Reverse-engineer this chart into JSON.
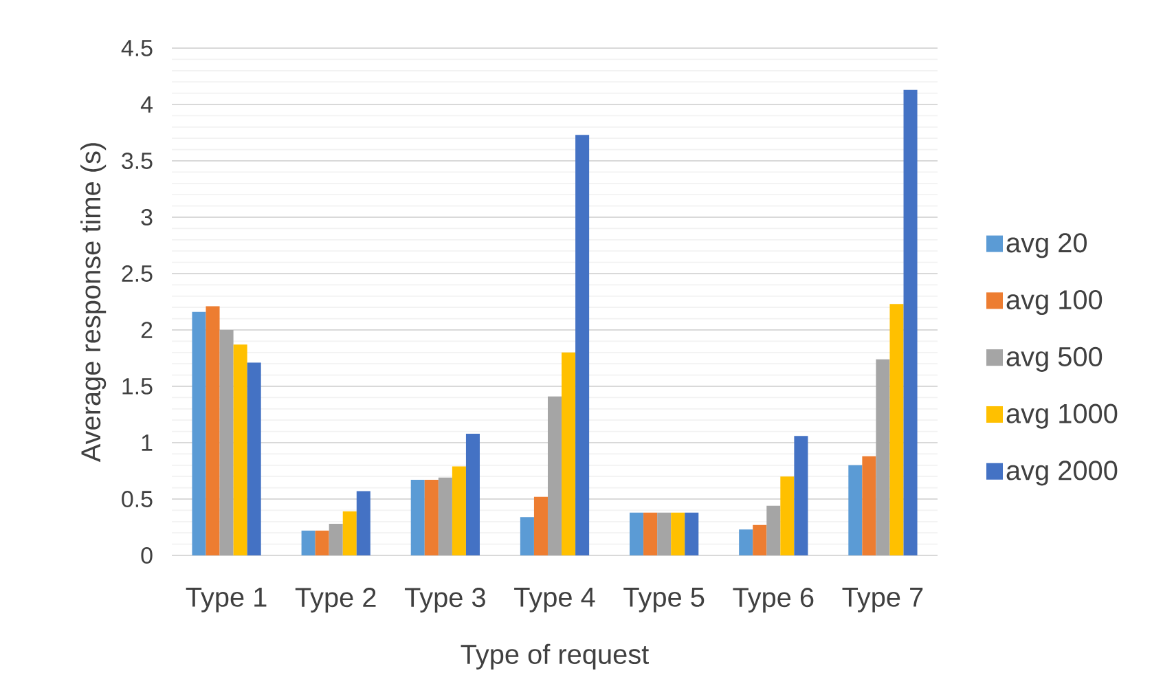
{
  "chart_data": {
    "type": "bar",
    "xlabel": "Type of request",
    "ylabel": "Average response time (s)",
    "categories": [
      "Type 1",
      "Type 2",
      "Type 3",
      "Type 4",
      "Type 5",
      "Type 6",
      "Type 7"
    ],
    "series": [
      {
        "name": "avg 20",
        "color": "#5b9bd5",
        "values": [
          2.16,
          0.22,
          0.67,
          0.34,
          0.38,
          0.23,
          0.8
        ]
      },
      {
        "name": "avg 100",
        "color": "#ed7d31",
        "values": [
          2.21,
          0.22,
          0.67,
          0.52,
          0.38,
          0.27,
          0.88
        ]
      },
      {
        "name": "avg 500",
        "color": "#a5a5a5",
        "values": [
          2.0,
          0.28,
          0.69,
          1.41,
          0.38,
          0.44,
          1.74
        ]
      },
      {
        "name": "avg 1000",
        "color": "#ffc000",
        "values": [
          1.87,
          0.39,
          0.79,
          1.8,
          0.38,
          0.7,
          2.23
        ]
      },
      {
        "name": "avg 2000",
        "color": "#4472c4",
        "values": [
          1.71,
          0.57,
          1.08,
          3.73,
          0.38,
          1.06,
          4.13
        ]
      }
    ],
    "ylim": [
      0,
      4.5
    ],
    "yticks": [
      0,
      {
        "value": 0.1,
        "label": null
      },
      {
        "value": 0.2,
        "label": null
      },
      {
        "value": 0.3,
        "label": null
      },
      {
        "value": 0.4,
        "label": null
      },
      0.5,
      {
        "value": 0.6,
        "label": null
      },
      {
        "value": 0.7,
        "label": null
      },
      {
        "value": 0.8,
        "label": null
      },
      {
        "value": 0.9,
        "label": null
      },
      1,
      {
        "value": 1.1,
        "label": null
      },
      {
        "value": 1.2,
        "label": null
      },
      {
        "value": 1.3,
        "label": null
      },
      {
        "value": 1.4,
        "label": null
      },
      1.5,
      {
        "value": 1.6,
        "label": null
      },
      {
        "value": 1.7,
        "label": null
      },
      {
        "value": 1.8,
        "label": null
      },
      {
        "value": 1.9,
        "label": null
      },
      2,
      {
        "value": 2.1,
        "label": null
      },
      {
        "value": 2.2,
        "label": null
      },
      {
        "value": 2.3,
        "label": null
      },
      {
        "value": 2.4,
        "label": null
      },
      2.5,
      {
        "value": 2.6,
        "label": null
      },
      {
        "value": 2.7,
        "label": null
      },
      {
        "value": 2.8,
        "label": null
      },
      {
        "value": 2.9,
        "label": null
      },
      3,
      {
        "value": 3.1,
        "label": null
      },
      {
        "value": 3.2,
        "label": null
      },
      {
        "value": 3.3,
        "label": null
      },
      {
        "value": 3.4,
        "label": null
      },
      3.5,
      {
        "value": 3.6,
        "label": null
      },
      {
        "value": 3.7,
        "label": null
      },
      {
        "value": 3.8,
        "label": null
      },
      {
        "value": 3.9,
        "label": null
      },
      4,
      {
        "value": 4.1,
        "label": null
      },
      {
        "value": 4.2,
        "label": null
      },
      {
        "value": 4.3,
        "label": null
      },
      {
        "value": 4.4,
        "label": null
      },
      4.5
    ],
    "grid": "y",
    "legend": "right"
  }
}
